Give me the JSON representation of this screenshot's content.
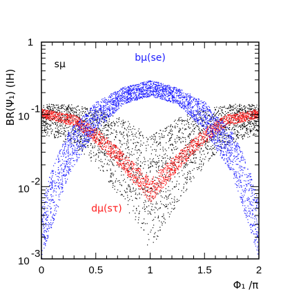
{
  "chart_data": {
    "type": "scatter",
    "xlabel": "Φ₁ /π",
    "ylabel": "BR(Ψ₁) (IH)",
    "xlim": [
      0,
      2
    ],
    "ylim": [
      0.001,
      1
    ],
    "yscale": "log",
    "grid": false,
    "x_ticks": [
      {
        "value": 0,
        "label": "0"
      },
      {
        "value": 0.5,
        "label": "0.5"
      },
      {
        "value": 1,
        "label": "1"
      },
      {
        "value": 1.5,
        "label": "1.5"
      },
      {
        "value": 2,
        "label": "2"
      }
    ],
    "y_ticks": [
      {
        "value": 1,
        "label": "1",
        "base": "",
        "exp": ""
      },
      {
        "value": 0.1,
        "label": "",
        "base": "10",
        "exp": "-1"
      },
      {
        "value": 0.01,
        "label": "",
        "base": "10",
        "exp": "-2"
      },
      {
        "value": 0.001,
        "label": "",
        "base": "10",
        "exp": "-3"
      }
    ],
    "series": [
      {
        "name": "sμ",
        "color": "#000000",
        "label_color": "#000000",
        "description_points": [
          {
            "x": 0.0,
            "y_low": 0.055,
            "y_high": 0.14
          },
          {
            "x": 0.25,
            "y_low": 0.04,
            "y_high": 0.14
          },
          {
            "x": 0.5,
            "y_low": 0.02,
            "y_high": 0.12
          },
          {
            "x": 0.75,
            "y_low": 0.006,
            "y_high": 0.09
          },
          {
            "x": 1.0,
            "y_low": 0.0013,
            "y_high": 0.05
          },
          {
            "x": 1.25,
            "y_low": 0.006,
            "y_high": 0.09
          },
          {
            "x": 1.5,
            "y_low": 0.02,
            "y_high": 0.12
          },
          {
            "x": 1.75,
            "y_low": 0.04,
            "y_high": 0.14
          },
          {
            "x": 2.0,
            "y_low": 0.055,
            "y_high": 0.14
          }
        ]
      },
      {
        "name": "dμ(sτ)",
        "color": "#ff1a1a",
        "label_color": "#ff1a1a",
        "description_points": [
          {
            "x": 0.0,
            "y_low": 0.09,
            "y_high": 0.12
          },
          {
            "x": 0.3,
            "y_low": 0.07,
            "y_high": 0.1
          },
          {
            "x": 0.5,
            "y_low": 0.04,
            "y_high": 0.065
          },
          {
            "x": 0.75,
            "y_low": 0.017,
            "y_high": 0.03
          },
          {
            "x": 1.0,
            "y_low": 0.006,
            "y_high": 0.013
          },
          {
            "x": 1.25,
            "y_low": 0.017,
            "y_high": 0.03
          },
          {
            "x": 1.5,
            "y_low": 0.04,
            "y_high": 0.065
          },
          {
            "x": 1.7,
            "y_low": 0.07,
            "y_high": 0.1
          },
          {
            "x": 2.0,
            "y_low": 0.09,
            "y_high": 0.12
          }
        ]
      },
      {
        "name": "bμ(se)",
        "color": "#1a1aff",
        "label_color": "#1a1aff",
        "description_points": [
          {
            "x": 0.0,
            "y_low": 0.001,
            "y_high": 0.006
          },
          {
            "x": 0.1,
            "y_low": 0.003,
            "y_high": 0.02
          },
          {
            "x": 0.25,
            "y_low": 0.015,
            "y_high": 0.06
          },
          {
            "x": 0.5,
            "y_low": 0.06,
            "y_high": 0.15
          },
          {
            "x": 0.75,
            "y_low": 0.14,
            "y_high": 0.24
          },
          {
            "x": 1.0,
            "y_low": 0.18,
            "y_high": 0.3
          },
          {
            "x": 1.25,
            "y_low": 0.14,
            "y_high": 0.24
          },
          {
            "x": 1.5,
            "y_low": 0.06,
            "y_high": 0.15
          },
          {
            "x": 1.75,
            "y_low": 0.015,
            "y_high": 0.06
          },
          {
            "x": 1.9,
            "y_low": 0.003,
            "y_high": 0.02
          },
          {
            "x": 2.0,
            "y_low": 0.001,
            "y_high": 0.006
          }
        ]
      }
    ],
    "annotations": [
      {
        "text": "sμ",
        "x": 0.17,
        "y": 0.45,
        "color": "#000000"
      },
      {
        "text": "bμ(se)",
        "x": 1.0,
        "y": 0.55,
        "color": "#1a1aff"
      },
      {
        "text": "dμ(sτ)",
        "x": 0.6,
        "y": 0.0045,
        "color": "#ff1a1a"
      }
    ]
  }
}
